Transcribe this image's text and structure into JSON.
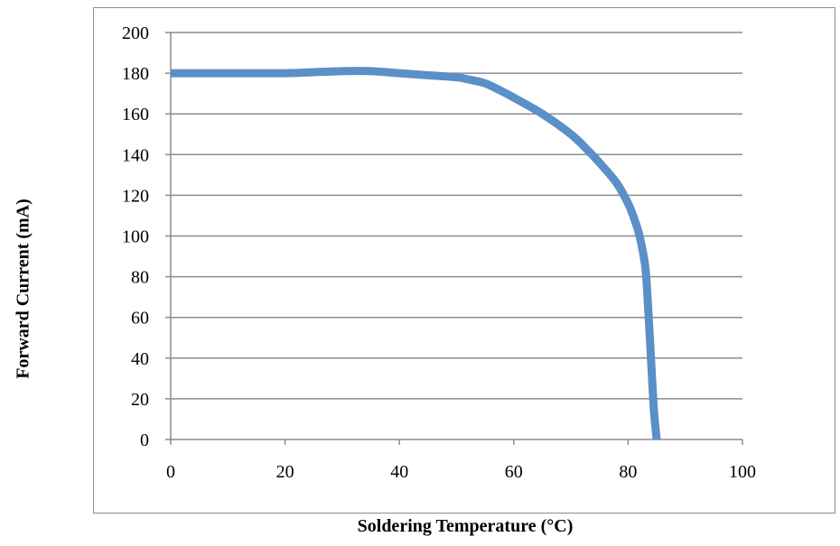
{
  "chart_data": {
    "type": "line",
    "title": "",
    "xlabel": "Soldering Temperature (°C)",
    "ylabel": "Forward Current (mA)",
    "xlim": [
      0,
      100
    ],
    "ylim": [
      0,
      200
    ],
    "x_ticks": [
      0,
      20,
      40,
      60,
      80,
      100
    ],
    "y_ticks": [
      0,
      20,
      40,
      60,
      80,
      100,
      120,
      140,
      160,
      180,
      200
    ],
    "grid": "horizontal",
    "legend": "none",
    "series": [
      {
        "color": "#5b8fc8",
        "x": [
          0,
          10,
          20,
          25,
          30,
          35,
          40,
          45,
          50,
          52,
          55,
          58,
          60,
          65,
          70,
          73,
          75,
          78,
          80,
          81,
          82,
          83,
          83.5,
          84,
          84.5,
          85
        ],
        "y": [
          180,
          180,
          180,
          180.5,
          181,
          181,
          180,
          179,
          178,
          177,
          175,
          171,
          168,
          160,
          150,
          142,
          136,
          126,
          116,
          109,
          100,
          85,
          65,
          40,
          15,
          0
        ]
      }
    ]
  }
}
